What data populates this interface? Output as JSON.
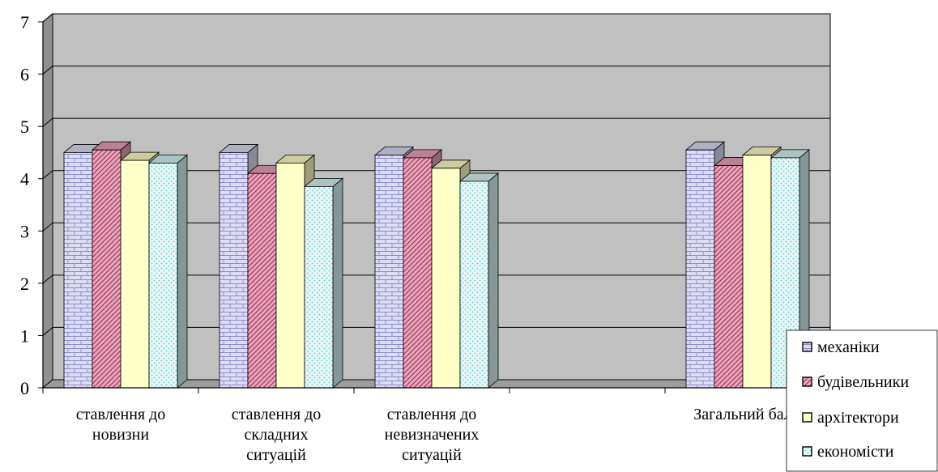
{
  "chart_data": {
    "type": "bar",
    "title": "",
    "xlabel": "",
    "ylabel": "",
    "ylim": [
      0,
      7
    ],
    "yticks": [
      "0",
      "1",
      "2",
      "3",
      "4",
      "5",
      "6",
      "7"
    ],
    "grid": true,
    "legend_position": "bottom-right",
    "categories": [
      [
        "ставлення до",
        "новизни"
      ],
      [
        "ставлення до",
        "складних",
        "ситуацій"
      ],
      [
        "ставлення до",
        "невизначених",
        "ситуацій"
      ],
      [
        ""
      ],
      [
        "Загальний бал"
      ]
    ],
    "series": [
      {
        "name": "механіки",
        "values": [
          4.5,
          4.5,
          4.45,
          null,
          4.55
        ],
        "color": "#dcdcf4",
        "pattern": "brick"
      },
      {
        "name": "будівельники",
        "values": [
          4.55,
          4.1,
          4.4,
          null,
          4.25
        ],
        "color": "#e8a0b8",
        "pattern": "diagonal"
      },
      {
        "name": "архітектори",
        "values": [
          4.35,
          4.3,
          4.2,
          null,
          4.45
        ],
        "color": "#ffffc8",
        "pattern": "solid"
      },
      {
        "name": "економісти",
        "values": [
          4.3,
          3.85,
          3.95,
          null,
          4.4
        ],
        "color": "#d8f4f4",
        "pattern": "dots"
      }
    ]
  }
}
